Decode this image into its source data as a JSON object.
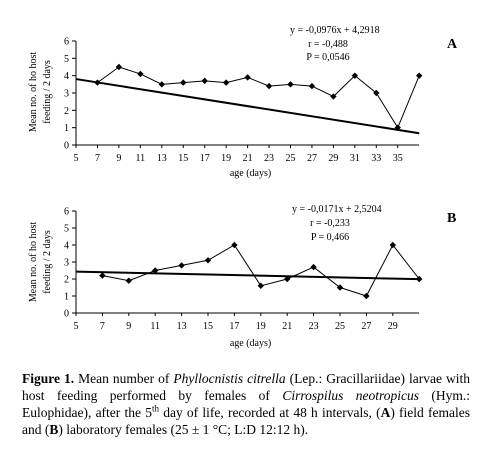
{
  "chart_data": [
    {
      "type": "line",
      "panel_label": "A",
      "xlabel": "age (days)",
      "ylabel": [
        "Mean no. of ho host",
        "feeding / 2 days"
      ],
      "xlim": [
        5,
        37
      ],
      "ylim": [
        0,
        6
      ],
      "xticks": [
        5,
        7,
        9,
        11,
        13,
        15,
        17,
        19,
        21,
        23,
        25,
        27,
        29,
        31,
        33,
        35
      ],
      "yticks": [
        0,
        1,
        2,
        3,
        4,
        5,
        6
      ],
      "x": [
        7,
        9,
        11,
        13,
        15,
        17,
        19,
        21,
        23,
        25,
        27,
        29,
        31,
        33,
        35,
        37
      ],
      "values": [
        3.6,
        4.5,
        4.1,
        3.5,
        3.6,
        3.7,
        3.6,
        3.9,
        3.4,
        3.5,
        3.4,
        2.8,
        4.0,
        3.0,
        1.0,
        4.0
      ],
      "trendline": {
        "slope": -0.0976,
        "intercept": 4.2918,
        "x_range": [
          5,
          37
        ]
      },
      "annotations": [
        "y = -0,0976x + 4,2918",
        "r = -0,488",
        "P = 0,0546"
      ]
    },
    {
      "type": "line",
      "panel_label": "B",
      "xlabel": "age (days)",
      "ylabel": [
        "Mean no. of ho host",
        "feeding / 2 days"
      ],
      "xlim": [
        5,
        31
      ],
      "ylim": [
        0,
        6
      ],
      "xticks": [
        5,
        7,
        9,
        11,
        13,
        15,
        17,
        19,
        21,
        23,
        25,
        27,
        29
      ],
      "yticks": [
        0,
        1,
        2,
        3,
        4,
        5,
        6
      ],
      "x": [
        7,
        9,
        11,
        13,
        15,
        17,
        19,
        21,
        23,
        25,
        27,
        29,
        31
      ],
      "values": [
        2.2,
        1.9,
        2.5,
        2.8,
        3.1,
        4.0,
        1.6,
        2.0,
        2.7,
        1.5,
        1.0,
        4.0,
        2.0
      ],
      "trendline": {
        "slope": -0.0171,
        "intercept": 2.5204,
        "x_range": [
          5,
          31
        ]
      },
      "annotations": [
        "y = -0,0171x + 2,5204",
        "r = -0,233",
        "P = 0,466"
      ]
    }
  ],
  "caption": {
    "label": "Figure 1.",
    "parts": [
      {
        "t": " Mean number of ",
        "s": "n"
      },
      {
        "t": "Phyllocnistis citrella",
        "s": "i"
      },
      {
        "t": " (Lep.: Gracillariidae) larvae with host feeding performed by females of ",
        "s": "n"
      },
      {
        "t": "Cirrospilus neotropicus",
        "s": "i"
      },
      {
        "t": " (Hym.: Eulophidae), after the 5",
        "s": "n"
      },
      {
        "t": "th",
        "s": "sup"
      },
      {
        "t": " day of life, recorded at 48 h intervals, (",
        "s": "n"
      },
      {
        "t": "A",
        "s": "b"
      },
      {
        "t": ") field females and (",
        "s": "n"
      },
      {
        "t": "B",
        "s": "b"
      },
      {
        "t": ") laboratory females (25 ± 1 °C; L:D 12:12 h).",
        "s": "n"
      }
    ]
  }
}
